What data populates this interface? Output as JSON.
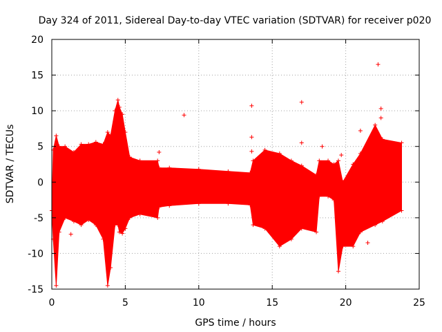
{
  "chart_data": {
    "type": "scatter",
    "title": "Day 324 of 2011, Sidereal Day-to-day VTEC variation (SDTVAR) for receiver p020",
    "xlabel": "GPS time / hours",
    "ylabel": "SDTVAR / TECUs",
    "xlim": [
      0,
      25
    ],
    "ylim": [
      -15,
      20
    ],
    "xticks": [
      0,
      5,
      10,
      15,
      20,
      25
    ],
    "xtick_labels": [
      "0",
      "5",
      "10",
      "15",
      "20",
      "25"
    ],
    "yticks": [
      -15,
      -10,
      -5,
      0,
      5,
      10,
      15,
      20
    ],
    "ytick_labels": [
      "-15",
      "-10",
      "-5",
      "0",
      "5",
      "10",
      "15",
      "20"
    ],
    "grid": true,
    "marker": "+",
    "color": "#ff0000",
    "envelope": {
      "x": [
        0.0,
        0.1,
        0.3,
        0.5,
        0.9,
        1.5,
        2.0,
        2.5,
        3.0,
        3.5,
        3.8,
        4.0,
        4.3,
        4.5,
        4.6,
        4.8,
        5.0,
        5.3,
        6.0,
        7.2,
        7.3,
        8.0,
        10.0,
        12.0,
        13.5,
        13.7,
        14.5,
        15.5,
        16.3,
        17.0,
        18.0,
        18.2,
        18.8,
        19.2,
        19.5,
        19.8,
        20.5,
        21.0,
        22.0,
        22.5,
        23.8
      ],
      "upper": [
        -4.0,
        4.5,
        6.5,
        5.0,
        5.0,
        4.2,
        5.3,
        5.3,
        5.6,
        5.3,
        7.0,
        6.5,
        10.0,
        11.5,
        10.5,
        9.5,
        7.0,
        3.5,
        3.0,
        3.0,
        2.0,
        2.0,
        1.8,
        1.5,
        1.3,
        3.0,
        4.5,
        4.0,
        3.0,
        2.3,
        1.0,
        3.0,
        3.0,
        2.5,
        3.0,
        0.0,
        2.5,
        4.0,
        8.0,
        6.0,
        5.5
      ],
      "lower": [
        -4.0,
        -8.0,
        -14.5,
        -7.0,
        -5.0,
        -5.5,
        -6.0,
        -5.3,
        -6.0,
        -8.0,
        -14.5,
        -12.0,
        -6.0,
        -6.0,
        -7.0,
        -7.2,
        -6.5,
        -5.0,
        -4.5,
        -5.0,
        -3.5,
        -3.3,
        -3.0,
        -3.0,
        -3.2,
        -6.0,
        -6.5,
        -9.0,
        -8.0,
        -6.5,
        -7.0,
        -2.0,
        -2.0,
        -2.5,
        -12.5,
        -9.0,
        -9.0,
        -7.0,
        -6.0,
        -5.5,
        -4.0
      ]
    },
    "outliers": [
      {
        "x": 1.3,
        "y": -7.3
      },
      {
        "x": 7.3,
        "y": 4.2
      },
      {
        "x": 9.0,
        "y": 9.4
      },
      {
        "x": 13.6,
        "y": 10.7
      },
      {
        "x": 13.6,
        "y": 6.3
      },
      {
        "x": 13.6,
        "y": 4.3
      },
      {
        "x": 17.0,
        "y": 11.2
      },
      {
        "x": 17.0,
        "y": 5.5
      },
      {
        "x": 21.0,
        "y": 7.2
      },
      {
        "x": 21.5,
        "y": -8.5
      },
      {
        "x": 22.2,
        "y": 16.5
      },
      {
        "x": 22.4,
        "y": 10.3
      },
      {
        "x": 22.4,
        "y": 9.0
      },
      {
        "x": 18.4,
        "y": 5.0
      },
      {
        "x": 19.7,
        "y": 3.8
      }
    ]
  }
}
